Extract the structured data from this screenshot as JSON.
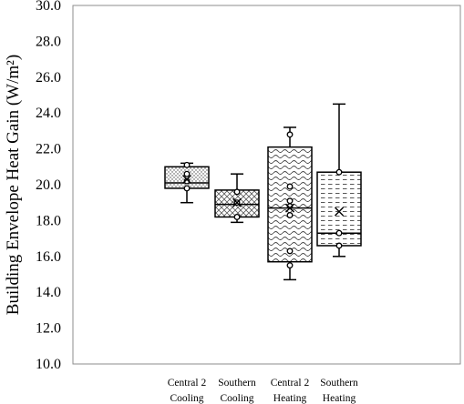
{
  "chart_data": {
    "type": "box",
    "ylabel": "Building Envelope Heat Gain (W/m²)",
    "ylim": [
      10,
      30
    ],
    "yticks": [
      "10.0",
      "12.0",
      "14.0",
      "16.0",
      "18.0",
      "20.0",
      "22.0",
      "24.0",
      "26.0",
      "28.0",
      "30.0"
    ],
    "grid": false,
    "categories": [
      {
        "line1": "Central 2",
        "line2": "Cooling"
      },
      {
        "line1": "Southern",
        "line2": "Cooling"
      },
      {
        "line1": "Central 2",
        "line2": "Heating"
      },
      {
        "line1": "Southern",
        "line2": "Heating"
      }
    ],
    "series": [
      {
        "category_index": 0,
        "pattern": "dots",
        "whisker_low": 19.0,
        "q1": 19.8,
        "median": 20.1,
        "q3": 21.0,
        "whisker_high": 21.2,
        "mean": 20.3,
        "points": [
          21.1,
          20.6,
          20.2,
          19.8
        ]
      },
      {
        "category_index": 1,
        "pattern": "diamonds",
        "whisker_low": 17.9,
        "q1": 18.2,
        "median": 18.9,
        "q3": 19.7,
        "whisker_high": 20.6,
        "mean": 19.0,
        "points": [
          19.6,
          19.0,
          18.2
        ]
      },
      {
        "category_index": 2,
        "pattern": "waves",
        "whisker_low": 14.7,
        "q1": 15.7,
        "median": 18.7,
        "q3": 22.1,
        "whisker_high": 23.2,
        "mean": 18.7,
        "points": [
          22.8,
          19.9,
          19.1,
          18.8,
          18.3,
          16.3,
          15.5
        ]
      },
      {
        "category_index": 3,
        "pattern": "dashes",
        "whisker_low": 16.0,
        "q1": 16.6,
        "median": 17.3,
        "q3": 20.7,
        "whisker_high": 24.5,
        "mean": 18.5,
        "points": [
          20.7,
          17.3,
          16.6
        ]
      }
    ]
  }
}
